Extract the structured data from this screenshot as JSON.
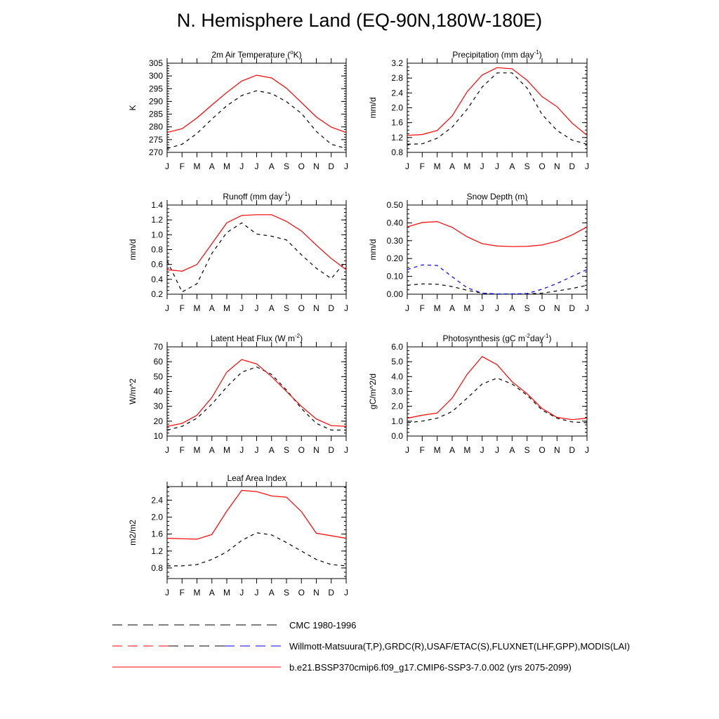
{
  "page": {
    "title": "N. Hemisphere Land (EQ-90N,180W-180E)"
  },
  "chart_data": [
    {
      "type": "line",
      "title": "2m Air Temperature (°K)",
      "ylabel": "K",
      "ylim": [
        270,
        305
      ],
      "yticks": [
        270,
        275,
        280,
        285,
        290,
        295,
        300,
        305
      ],
      "tick_decimals": 0,
      "categories": [
        "J",
        "F",
        "M",
        "A",
        "M",
        "J",
        "J",
        "A",
        "S",
        "O",
        "N",
        "D",
        "J"
      ],
      "series": [
        {
          "values": [
            271.5,
            273.2,
            277.4,
            283.1,
            288.3,
            292.3,
            294.2,
            293.1,
            289.9,
            285.3,
            278.2,
            273.2,
            271.5
          ],
          "color": "#000000",
          "dash": "5,5"
        },
        {
          "values": [
            277.8,
            279.3,
            283.5,
            288.6,
            293.5,
            298.0,
            300.3,
            299.2,
            295.2,
            289.6,
            283.9,
            279.9,
            277.8
          ],
          "color": "#ff0000",
          "dash": ""
        }
      ]
    },
    {
      "type": "line",
      "title": "Precipitation (mm day-1)",
      "ylabel": "mm/d",
      "ylim": [
        0.8,
        3.2
      ],
      "yticks": [
        0.8,
        1.2,
        1.6,
        2.0,
        2.4,
        2.8,
        3.2
      ],
      "tick_decimals": 1,
      "categories": [
        "J",
        "F",
        "M",
        "A",
        "M",
        "J",
        "J",
        "A",
        "S",
        "O",
        "N",
        "D",
        "J"
      ],
      "series": [
        {
          "values": [
            1.02,
            1.03,
            1.18,
            1.48,
            1.96,
            2.56,
            2.94,
            2.94,
            2.53,
            1.82,
            1.39,
            1.13,
            1.02
          ],
          "color": "#000000",
          "dash": "5,5"
        },
        {
          "values": [
            1.26,
            1.28,
            1.39,
            1.78,
            2.43,
            2.88,
            3.08,
            3.05,
            2.74,
            2.3,
            2.03,
            1.59,
            1.26
          ],
          "color": "#ff0000",
          "dash": ""
        }
      ]
    },
    {
      "type": "line",
      "title": "Runoff (mm day-1)",
      "ylabel": "mm/d",
      "ylim": [
        0.2,
        1.4
      ],
      "yticks": [
        0.2,
        0.4,
        0.6,
        0.8,
        1.0,
        1.2,
        1.4
      ],
      "tick_decimals": 1,
      "categories": [
        "J",
        "F",
        "M",
        "A",
        "M",
        "J",
        "J",
        "A",
        "S",
        "O",
        "N",
        "D",
        "J"
      ],
      "series": [
        {
          "values": [
            0.65,
            0.23,
            0.34,
            0.75,
            1.03,
            1.16,
            1.01,
            0.98,
            0.93,
            0.73,
            0.55,
            0.41,
            0.65
          ],
          "color": "#000000",
          "dash": "5,5"
        },
        {
          "values": [
            0.53,
            0.51,
            0.6,
            0.88,
            1.16,
            1.26,
            1.27,
            1.27,
            1.18,
            1.05,
            0.86,
            0.68,
            0.53
          ],
          "color": "#ff0000",
          "dash": ""
        }
      ]
    },
    {
      "type": "line",
      "title": "Snow Depth (m)",
      "ylabel": "mm/d",
      "ylim": [
        0.0,
        0.5
      ],
      "yticks": [
        0.0,
        0.1,
        0.2,
        0.3,
        0.4,
        0.5
      ],
      "tick_decimals": 2,
      "categories": [
        "J",
        "F",
        "M",
        "A",
        "M",
        "J",
        "J",
        "A",
        "S",
        "O",
        "N",
        "D",
        "J"
      ],
      "series": [
        {
          "values": [
            0.05,
            0.058,
            0.056,
            0.043,
            0.022,
            0.006,
            0.001,
            0.001,
            0.002,
            0.006,
            0.018,
            0.032,
            0.05
          ],
          "color": "#000000",
          "dash": "5,5"
        },
        {
          "values": [
            0.138,
            0.164,
            0.161,
            0.098,
            0.036,
            0.006,
            0.001,
            0.001,
            0.004,
            0.028,
            0.06,
            0.1,
            0.138
          ],
          "color": "#0000ff",
          "dash": "5,5"
        },
        {
          "values": [
            0.377,
            0.402,
            0.407,
            0.375,
            0.322,
            0.283,
            0.27,
            0.267,
            0.268,
            0.276,
            0.297,
            0.332,
            0.377
          ],
          "color": "#ff0000",
          "dash": ""
        }
      ]
    },
    {
      "type": "line",
      "title": "Latent Heat Flux (W m-2)",
      "ylabel": "W/m^2",
      "ylim": [
        10,
        70
      ],
      "yticks": [
        10,
        20,
        30,
        40,
        50,
        60,
        70
      ],
      "tick_decimals": 0,
      "categories": [
        "J",
        "F",
        "M",
        "A",
        "M",
        "J",
        "J",
        "A",
        "S",
        "O",
        "N",
        "D",
        "J"
      ],
      "series": [
        {
          "values": [
            14.0,
            16.5,
            22.0,
            31.5,
            43.0,
            53.0,
            56.5,
            51.5,
            41.0,
            28.5,
            18.5,
            14.0,
            14.0
          ],
          "color": "#000000",
          "dash": "5,5"
        },
        {
          "values": [
            16.5,
            18.5,
            24.0,
            36.0,
            53.0,
            61.5,
            58.5,
            50.0,
            40.0,
            30.0,
            21.5,
            17.0,
            16.5
          ],
          "color": "#ff0000",
          "dash": ""
        }
      ]
    },
    {
      "type": "line",
      "title": "Photosynthesis (gC m-2day-1)",
      "ylabel": "gC/m^2/d",
      "ylim": [
        0.0,
        6.0
      ],
      "yticks": [
        0.0,
        1.0,
        2.0,
        3.0,
        4.0,
        5.0,
        6.0
      ],
      "tick_decimals": 1,
      "categories": [
        "J",
        "F",
        "M",
        "A",
        "M",
        "J",
        "J",
        "A",
        "S",
        "O",
        "N",
        "D",
        "J"
      ],
      "series": [
        {
          "values": [
            0.9,
            1.0,
            1.2,
            1.65,
            2.55,
            3.5,
            3.9,
            3.5,
            2.75,
            1.75,
            1.2,
            0.95,
            0.9
          ],
          "color": "#000000",
          "dash": "5,5"
        },
        {
          "values": [
            1.2,
            1.4,
            1.55,
            2.55,
            4.15,
            5.35,
            4.8,
            3.65,
            2.85,
            1.85,
            1.25,
            1.1,
            1.2
          ],
          "color": "#ff0000",
          "dash": ""
        }
      ]
    },
    {
      "type": "line",
      "title": "Leaf Area Index",
      "ylabel": "m2/m2",
      "ylim": [
        0.55,
        2.72
      ],
      "yticks": [
        0.8,
        1.2,
        1.6,
        2.0,
        2.4
      ],
      "tick_decimals": 1,
      "categories": [
        "J",
        "F",
        "M",
        "A",
        "M",
        "J",
        "J",
        "A",
        "S",
        "O",
        "N",
        "D",
        "J"
      ],
      "series": [
        {
          "values": [
            0.85,
            0.85,
            0.88,
            1.0,
            1.18,
            1.45,
            1.63,
            1.58,
            1.4,
            1.2,
            1.0,
            0.88,
            0.85
          ],
          "color": "#000000",
          "dash": "5,5"
        },
        {
          "values": [
            1.5,
            1.49,
            1.48,
            1.59,
            2.14,
            2.63,
            2.6,
            2.5,
            2.47,
            2.13,
            1.62,
            1.56,
            1.5
          ],
          "color": "#ff0000",
          "dash": ""
        }
      ]
    }
  ],
  "legend": {
    "placement": "bottom",
    "items": [
      {
        "label": "CMC 1980-1996",
        "colors": [
          "#000000"
        ],
        "dash": "14,8"
      },
      {
        "label": "Willmott-Matsuura(T,P),GRDC(R),USAF/ETAC(S),FLUXNET(LHF,GPP),MODIS(LAI)",
        "colors": [
          "#ff0000",
          "#000000",
          "#0000ff"
        ],
        "dash": "14,8"
      },
      {
        "label": "b.e21.BSSP370cmip6.f09_g17.CMIP6-SSP3-7.0.002 (yrs 2075-2099)",
        "colors": [
          "#ff0000"
        ],
        "dash": ""
      }
    ]
  }
}
